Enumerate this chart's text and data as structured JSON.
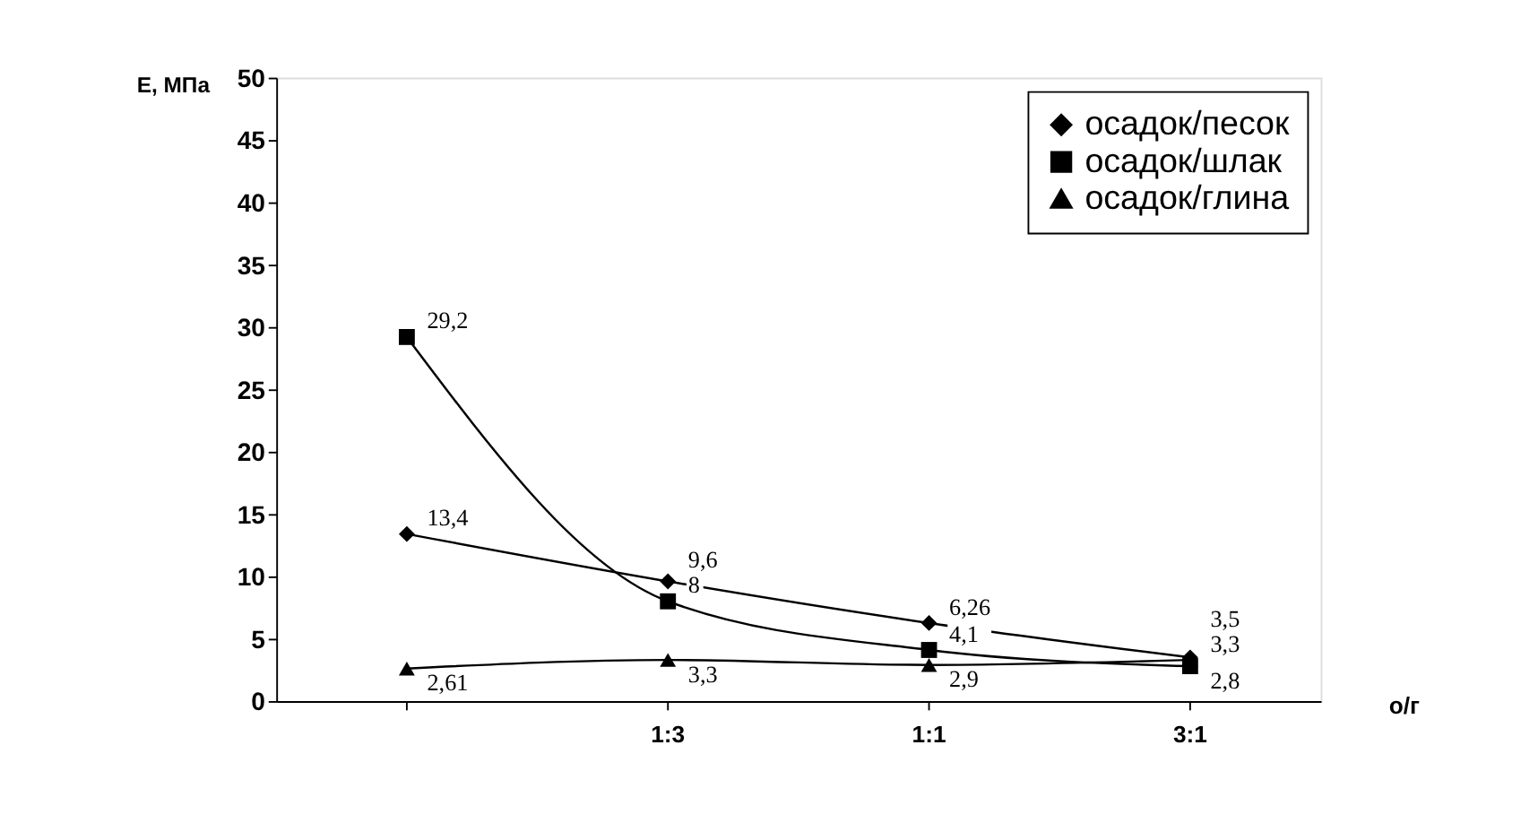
{
  "chart_data": {
    "type": "line",
    "ylabel": "Е, МПа",
    "xlabel": "о/г",
    "categories": [
      null,
      "1:3",
      "1:1",
      "3:1"
    ],
    "series": [
      {
        "name": "осадок/песок",
        "color": "#000000",
        "marker": "diamond",
        "values": [
          13.4,
          9.6,
          6.26,
          3.5
        ],
        "value_labels": [
          "13,4",
          "9,6",
          "6,26",
          "3,5"
        ]
      },
      {
        "name": "осадок/шлак",
        "color": "#000000",
        "marker": "square",
        "values": [
          29.2,
          8,
          4.1,
          2.8
        ],
        "value_labels": [
          "29,2",
          "8",
          "4,1",
          "2,8"
        ]
      },
      {
        "name": "осадок/глина",
        "color": "#000000",
        "marker": "triangle",
        "values": [
          2.61,
          3.3,
          2.9,
          3.3
        ],
        "value_labels": [
          "2,61",
          "3,3",
          "2,9",
          "3,3"
        ]
      }
    ],
    "ylim": [
      0,
      50
    ],
    "yticks": [
      0,
      5,
      10,
      15,
      20,
      25,
      30,
      35,
      40,
      45,
      50
    ],
    "grid": false,
    "legend": "top right"
  }
}
